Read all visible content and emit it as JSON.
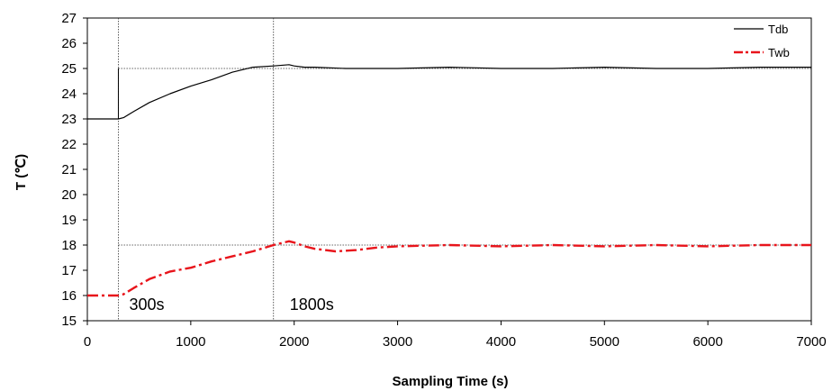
{
  "chart_data": {
    "type": "line",
    "xlabel": "Sampling Time (s)",
    "ylabel": "T (℃)",
    "xlim": [
      0,
      7000
    ],
    "ylim": [
      15,
      27
    ],
    "xticks": [
      0,
      1000,
      2000,
      3000,
      4000,
      5000,
      6000,
      7000
    ],
    "yticks": [
      15,
      16,
      17,
      18,
      19,
      20,
      21,
      22,
      23,
      24,
      25,
      26,
      27
    ],
    "grid": false,
    "legend_position": "top-right",
    "series": [
      {
        "name": "Tdb",
        "color": "#000000",
        "style": "solid",
        "x": [
          0,
          300,
          350,
          450,
          600,
          800,
          1000,
          1200,
          1400,
          1600,
          1800,
          1950,
          2000,
          2100,
          2200,
          2500,
          3000,
          3500,
          4000,
          4500,
          5000,
          5500,
          6000,
          6500,
          7000
        ],
        "y": [
          23.0,
          23.0,
          23.05,
          23.3,
          23.65,
          24.0,
          24.3,
          24.55,
          24.85,
          25.05,
          25.1,
          25.15,
          25.1,
          25.05,
          25.05,
          25.0,
          25.0,
          25.05,
          25.0,
          25.0,
          25.05,
          25.0,
          25.0,
          25.05,
          25.05
        ]
      },
      {
        "name": "Twb",
        "color": "#e8141b",
        "style": "dashdot",
        "x": [
          0,
          300,
          350,
          450,
          600,
          800,
          1000,
          1200,
          1400,
          1600,
          1800,
          1950,
          2000,
          2100,
          2200,
          2400,
          2600,
          2800,
          3000,
          3500,
          4000,
          4500,
          5000,
          5500,
          6000,
          6500,
          7000
        ],
        "y": [
          16.0,
          16.0,
          16.05,
          16.3,
          16.65,
          16.95,
          17.1,
          17.35,
          17.55,
          17.75,
          18.0,
          18.15,
          18.1,
          17.95,
          17.85,
          17.75,
          17.8,
          17.9,
          17.95,
          18.0,
          17.95,
          18.0,
          17.95,
          18.0,
          17.95,
          18.0,
          18.0
        ]
      }
    ],
    "reference_lines": [
      {
        "axis": "x",
        "value": 300
      },
      {
        "axis": "x",
        "value": 1800
      },
      {
        "axis": "y",
        "value": 25,
        "from": 300,
        "to": 7000
      },
      {
        "axis": "y",
        "value": 18,
        "from": 300,
        "to": 7000
      }
    ],
    "annotations": [
      {
        "text": "300s",
        "x": 300,
        "y": 16
      },
      {
        "text": "1800s",
        "x": 1800,
        "y": 16
      }
    ]
  }
}
